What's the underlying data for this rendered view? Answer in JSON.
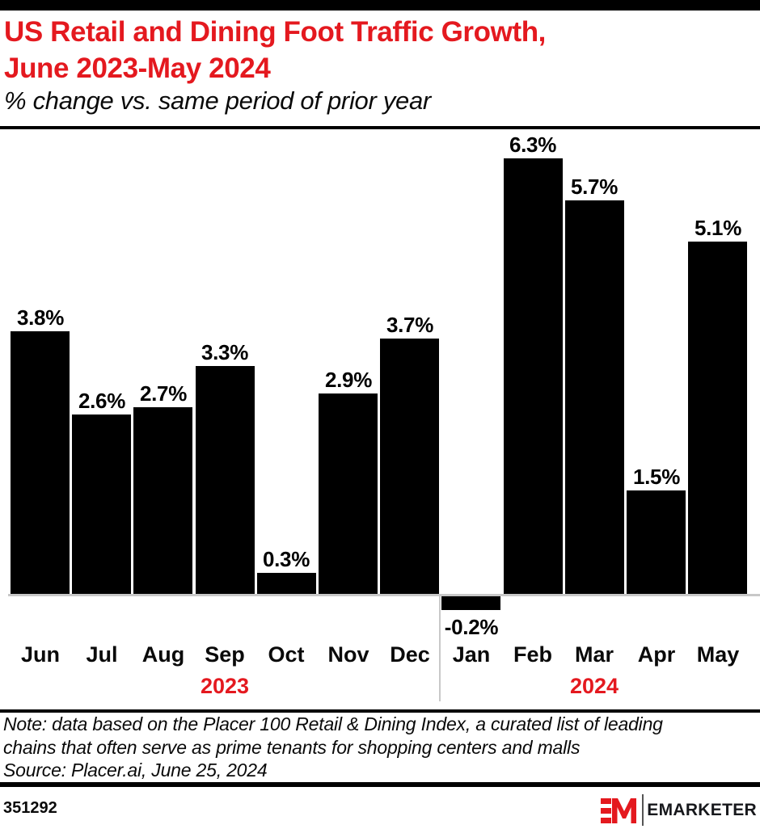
{
  "header": {
    "title_line1": "US Retail and Dining Foot Traffic Growth,",
    "title_line2": "June 2023-May 2024",
    "subtitle": "% change vs. same period of prior year",
    "title_color": "#e4191f"
  },
  "chart_data": {
    "type": "bar",
    "categories": [
      "Jun",
      "Jul",
      "Aug",
      "Sep",
      "Oct",
      "Nov",
      "Dec",
      "Jan",
      "Feb",
      "Mar",
      "Apr",
      "May"
    ],
    "values": [
      3.8,
      2.6,
      2.7,
      3.3,
      0.3,
      2.9,
      3.7,
      -0.2,
      6.3,
      5.7,
      1.5,
      5.1
    ],
    "value_labels": [
      "3.8%",
      "2.6%",
      "2.7%",
      "3.3%",
      "0.3%",
      "2.9%",
      "3.7%",
      "-0.2%",
      "6.3%",
      "5.7%",
      "1.5%",
      "5.1%"
    ],
    "years": [
      {
        "label": "2023",
        "anchor_month": "Sep"
      },
      {
        "label": "2024",
        "anchor_month": "Mar"
      }
    ],
    "year_divider_before": "Jan",
    "title": "US Retail and Dining Foot Traffic Growth, June 2023-May 2024",
    "xlabel": "",
    "ylabel": "% change vs. same period of prior year",
    "ylim": [
      -0.5,
      6.6
    ],
    "grid": false,
    "legend": "none",
    "bar_color": "#000000",
    "axis_color": "#c8c8c8",
    "year_label_color": "#e4191f"
  },
  "footnote": {
    "line1": "Note: data based on the Placer 100 Retail & Dining Index, a curated list of leading",
    "line2": "chains that often serve as prime tenants for shopping centers and malls",
    "source": "Source: Placer.ai, June 25, 2024"
  },
  "footer": {
    "chart_id": "351292",
    "brand_name": "EMARKETER",
    "brand_color": "#e4191f"
  }
}
